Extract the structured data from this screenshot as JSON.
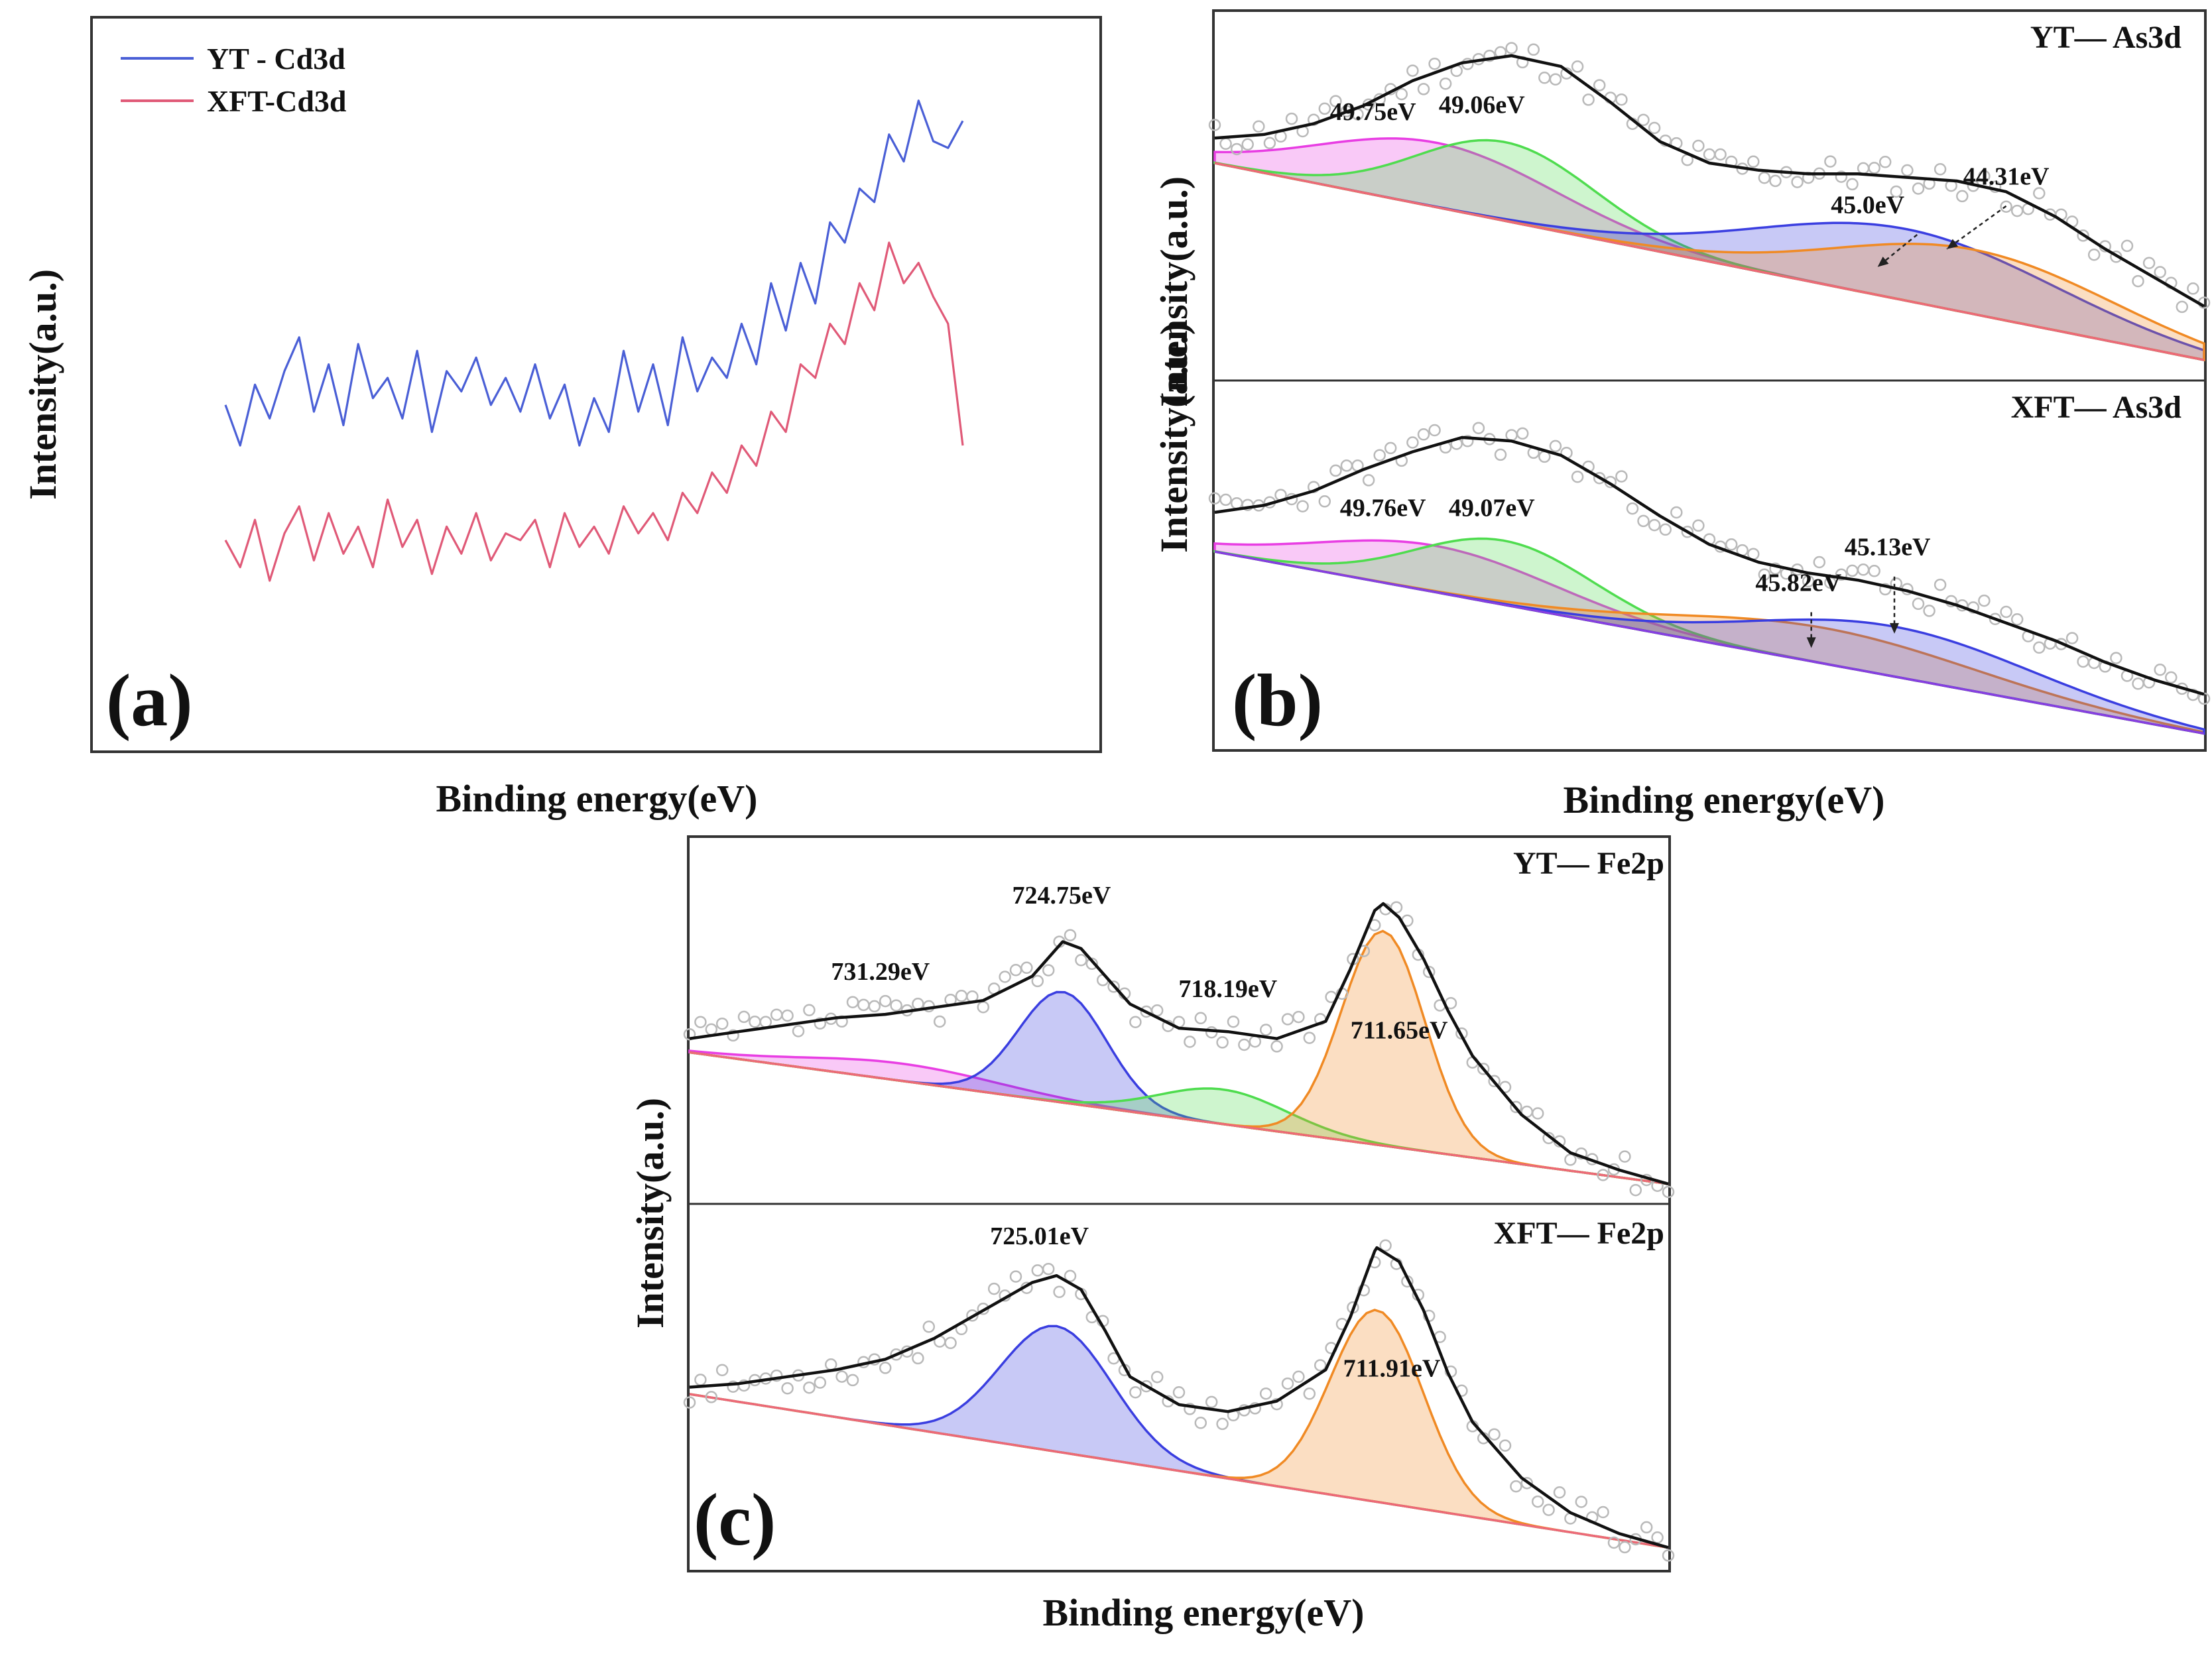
{
  "figure_caption": "",
  "colors": {
    "frame": "#333333",
    "envelope": "#111111",
    "raw_points": "#b9b9b9",
    "yt_series": "#4a5fd6",
    "xft_series": "#e05a78",
    "magenta": "#e83ee3",
    "green": "#4fdc4f",
    "blue": "#3a3ee0",
    "orange": "#f08a24"
  },
  "chart_data": [
    {
      "id": "a",
      "type": "line",
      "panel_letter": "(a)",
      "title": "",
      "xlabel": "Binding energy(eV)",
      "ylabel": "Intensity(a.u.)",
      "ticks_shown": false,
      "xlim": [
        0,
        100
      ],
      "ylim": [
        0,
        1
      ],
      "x_axis_note": "relative scan position, no tick labels shown",
      "legend": {
        "placement": "top-left",
        "entries": [
          "YT - Cd3d",
          "XFT-Cd3d"
        ]
      },
      "series": [
        {
          "name": "YT - Cd3d",
          "color": "#4a5fd6",
          "x": [
            0,
            2,
            4,
            6,
            8,
            10,
            12,
            14,
            16,
            18,
            20,
            22,
            24,
            26,
            28,
            30,
            32,
            34,
            36,
            38,
            40,
            42,
            44,
            46,
            48,
            50,
            52,
            54,
            56,
            58,
            60,
            62,
            64,
            66,
            68,
            70,
            72,
            74,
            76,
            78,
            80,
            82,
            84,
            86,
            88,
            90,
            92,
            94,
            96,
            98,
            100
          ],
          "y": [
            0.46,
            0.4,
            0.49,
            0.44,
            0.51,
            0.56,
            0.45,
            0.52,
            0.43,
            0.55,
            0.47,
            0.5,
            0.44,
            0.54,
            0.42,
            0.51,
            0.48,
            0.53,
            0.46,
            0.5,
            0.45,
            0.52,
            0.44,
            0.49,
            0.4,
            0.47,
            0.42,
            0.54,
            0.45,
            0.52,
            0.43,
            0.56,
            0.48,
            0.53,
            0.5,
            0.58,
            0.52,
            0.64,
            0.57,
            0.67,
            0.61,
            0.73,
            0.7,
            0.78,
            0.76,
            0.86,
            0.82,
            0.91,
            0.85,
            0.84,
            0.88
          ]
        },
        {
          "name": "XFT-Cd3d",
          "color": "#e05a78",
          "x": [
            0,
            2,
            4,
            6,
            8,
            10,
            12,
            14,
            16,
            18,
            20,
            22,
            24,
            26,
            28,
            30,
            32,
            34,
            36,
            38,
            40,
            42,
            44,
            46,
            48,
            50,
            52,
            54,
            56,
            58,
            60,
            62,
            64,
            66,
            68,
            70,
            72,
            74,
            76,
            78,
            80,
            82,
            84,
            86,
            88,
            90,
            92,
            94,
            96,
            98,
            100
          ],
          "y": [
            0.26,
            0.22,
            0.29,
            0.2,
            0.27,
            0.31,
            0.23,
            0.3,
            0.24,
            0.28,
            0.22,
            0.32,
            0.25,
            0.29,
            0.21,
            0.28,
            0.24,
            0.3,
            0.23,
            0.27,
            0.26,
            0.29,
            0.22,
            0.3,
            0.25,
            0.28,
            0.24,
            0.31,
            0.27,
            0.3,
            0.26,
            0.33,
            0.3,
            0.36,
            0.33,
            0.4,
            0.37,
            0.45,
            0.42,
            0.52,
            0.5,
            0.58,
            0.55,
            0.64,
            0.6,
            0.7,
            0.64,
            0.67,
            0.62,
            0.58,
            0.4
          ]
        }
      ]
    },
    {
      "id": "b",
      "type": "line",
      "panel_letter": "(b)",
      "xlabel": "Binding energy(eV)",
      "ylabel": "Intensity(a.u.)",
      "ticks_shown": false,
      "xlim": [
        52,
        42
      ],
      "subpanels": [
        {
          "title": "YT— As3d",
          "ylim": [
            0,
            1
          ],
          "envelope": {
            "x": [
              52,
              51.5,
              51,
              50.5,
              50,
              49.5,
              49,
              48.5,
              48,
              47.5,
              47,
              46.5,
              46,
              45.5,
              45,
              44.5,
              44,
              43.5,
              43,
              42.5,
              42
            ],
            "y": [
              0.67,
              0.68,
              0.71,
              0.76,
              0.83,
              0.88,
              0.9,
              0.87,
              0.77,
              0.66,
              0.6,
              0.58,
              0.57,
              0.57,
              0.56,
              0.55,
              0.52,
              0.45,
              0.36,
              0.28,
              0.2
            ]
          },
          "components": [
            {
              "name": "49.75eV",
              "color": "#e83ee3",
              "center": 49.75,
              "height": 0.18,
              "width": 1.2
            },
            {
              "name": "49.06eV",
              "color": "#4fdc4f",
              "center": 49.06,
              "height": 0.22,
              "width": 0.9
            },
            {
              "name": "45.0eV",
              "color": "#3a3ee0",
              "center": 45.0,
              "height": 0.2,
              "width": 1.5
            },
            {
              "name": "44.31eV",
              "color": "#f08a24",
              "center": 44.31,
              "height": 0.18,
              "width": 1.4
            }
          ],
          "background": {
            "x0": 52,
            "y0": 0.6,
            "x1": 42,
            "y1": 0.05
          },
          "peak_labels": [
            {
              "text": "49.75eV",
              "x": 50.4,
              "y": 0.72
            },
            {
              "text": "49.06eV",
              "x": 49.3,
              "y": 0.74
            },
            {
              "text": "45.0eV",
              "x": 45.4,
              "y": 0.46
            },
            {
              "text": "44.31eV",
              "x": 44.0,
              "y": 0.54
            }
          ],
          "arrows": [
            {
              "x_from": 44.9,
              "y_from": 0.4,
              "x_to": 45.3,
              "y_to": 0.31
            },
            {
              "x_from": 44.0,
              "y_from": 0.48,
              "x_to": 44.6,
              "y_to": 0.36
            }
          ],
          "noise_seed": 11
        },
        {
          "title": "XFT— As3d",
          "ylim": [
            0,
            1
          ],
          "envelope": {
            "x": [
              52,
              51.5,
              51,
              50.5,
              50,
              49.5,
              49,
              48.5,
              48,
              47.5,
              47,
              46.5,
              46,
              45.5,
              45,
              44.5,
              44,
              43.5,
              43,
              42.5,
              42
            ],
            "y": [
              0.66,
              0.68,
              0.72,
              0.78,
              0.83,
              0.87,
              0.86,
              0.82,
              0.74,
              0.65,
              0.57,
              0.52,
              0.49,
              0.47,
              0.44,
              0.4,
              0.35,
              0.3,
              0.24,
              0.19,
              0.15
            ]
          },
          "components": [
            {
              "name": "49.76eV",
              "color": "#e83ee3",
              "center": 49.76,
              "height": 0.13,
              "width": 1.2
            },
            {
              "name": "49.07eV",
              "color": "#4fdc4f",
              "center": 49.07,
              "height": 0.18,
              "width": 0.9
            },
            {
              "name": "45.82eV",
              "color": "#f08a24",
              "center": 45.82,
              "height": 0.1,
              "width": 1.5
            },
            {
              "name": "45.13eV",
              "color": "#3a3ee0",
              "center": 45.13,
              "height": 0.14,
              "width": 1.4
            }
          ],
          "background": {
            "x0": 52,
            "y0": 0.55,
            "x1": 42,
            "y1": 0.04
          },
          "peak_labels": [
            {
              "text": "49.76eV",
              "x": 50.3,
              "y": 0.65
            },
            {
              "text": "49.07eV",
              "x": 49.2,
              "y": 0.65
            },
            {
              "text": "45.82eV",
              "x": 46.1,
              "y": 0.44
            },
            {
              "text": "45.13eV",
              "x": 45.2,
              "y": 0.54
            }
          ],
          "arrows": [
            {
              "x_from": 45.97,
              "y_from": 0.38,
              "x_to": 45.97,
              "y_to": 0.28
            },
            {
              "x_from": 45.13,
              "y_from": 0.48,
              "x_to": 45.13,
              "y_to": 0.32
            }
          ],
          "noise_seed": 23
        }
      ]
    },
    {
      "id": "c",
      "type": "line",
      "panel_letter": "(c)",
      "xlabel": "Binding energy(eV)",
      "ylabel": "Intensity(a.u.)",
      "ticks_shown": false,
      "xlim": [
        740,
        700
      ],
      "subpanels": [
        {
          "title": "YT— Fe2p",
          "ylim": [
            0,
            1
          ],
          "envelope": {
            "x": [
              740,
              738,
              736,
              734,
              732,
              730,
              728,
              726,
              725,
              724.75,
              724,
              723,
              722,
              720,
              718,
              716,
              714,
              713,
              712,
              711.65,
              711,
              710,
              709,
              708,
              706,
              704,
              702,
              700
            ],
            "y": [
              0.47,
              0.49,
              0.51,
              0.53,
              0.54,
              0.56,
              0.58,
              0.65,
              0.73,
              0.75,
              0.73,
              0.65,
              0.57,
              0.5,
              0.49,
              0.47,
              0.52,
              0.67,
              0.84,
              0.86,
              0.82,
              0.7,
              0.55,
              0.42,
              0.25,
              0.14,
              0.09,
              0.05
            ]
          },
          "components": [
            {
              "name": "731.29eV",
              "color": "#e83ee3",
              "center": 731.29,
              "height": 0.05,
              "width": 4.0
            },
            {
              "name": "724.75eV",
              "color": "#3a3ee0",
              "center": 724.75,
              "height": 0.32,
              "width": 1.8
            },
            {
              "name": "718.19eV",
              "color": "#4fdc4f",
              "center": 718.19,
              "height": 0.1,
              "width": 2.6
            },
            {
              "name": "711.65eV",
              "color": "#f08a24",
              "center": 711.65,
              "height": 0.62,
              "width": 1.7
            }
          ],
          "background": {
            "x0": 740,
            "y0": 0.43,
            "x1": 700,
            "y1": 0.05
          },
          "peak_labels": [
            {
              "text": "731.29eV",
              "x": 732.2,
              "y": 0.64
            },
            {
              "text": "724.75eV",
              "x": 724.8,
              "y": 0.86
            },
            {
              "text": "718.19eV",
              "x": 718.0,
              "y": 0.59
            },
            {
              "text": "711.65eV",
              "x": 711.0,
              "y": 0.47
            }
          ],
          "arrows": [],
          "noise_seed": 37
        },
        {
          "title": "XFT— Fe2p",
          "ylim": [
            0,
            1
          ],
          "envelope": {
            "x": [
              740,
              738,
              736,
              734,
              732,
              730,
              728,
              726,
              725,
              724,
              723,
              722,
              720,
              718,
              716,
              714,
              713,
              712,
              711.91,
              711,
              710,
              709,
              708,
              706,
              704,
              702,
              700
            ],
            "y": [
              0.52,
              0.53,
              0.55,
              0.57,
              0.6,
              0.66,
              0.74,
              0.82,
              0.84,
              0.8,
              0.68,
              0.55,
              0.47,
              0.45,
              0.48,
              0.57,
              0.72,
              0.91,
              0.92,
              0.88,
              0.74,
              0.56,
              0.42,
              0.26,
              0.16,
              0.1,
              0.06
            ]
          },
          "components": [
            {
              "name": "725.01eV",
              "color": "#3a3ee0",
              "center": 725.01,
              "height": 0.36,
              "width": 2.3
            },
            {
              "name": "711.91eV",
              "color": "#f08a24",
              "center": 711.91,
              "height": 0.55,
              "width": 1.9
            }
          ],
          "background": {
            "x0": 740,
            "y0": 0.5,
            "x1": 700,
            "y1": 0.06
          },
          "peak_labels": [
            {
              "text": "725.01eV",
              "x": 725.7,
              "y": 0.93
            },
            {
              "text": "711.91eV",
              "x": 711.3,
              "y": 0.55
            }
          ],
          "arrows": [],
          "noise_seed": 53
        }
      ]
    }
  ]
}
